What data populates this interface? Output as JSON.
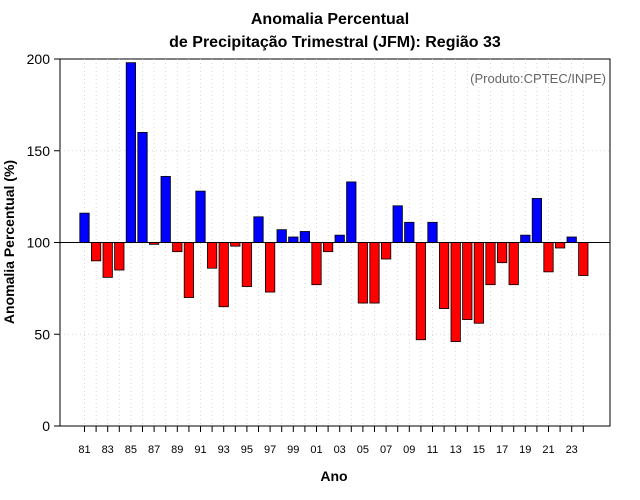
{
  "chart_data": {
    "type": "bar",
    "title_line1": "Anomalia Percentual",
    "title_line2": "de Precipitação Trimestral (JFM): Região 33",
    "xlabel": "Ano",
    "ylabel": "Anomalia Percentual (%)",
    "credit": "(Produto:CPTEC/INPE)",
    "baseline": 100,
    "ylim": [
      0,
      200
    ],
    "yticks": [
      0,
      50,
      100,
      150,
      200
    ],
    "grid": true,
    "colors": {
      "above": "#0000ff",
      "below": "#ff0000",
      "edge": "#000000"
    },
    "categories": [
      "81",
      "82",
      "83",
      "84",
      "85",
      "86",
      "87",
      "88",
      "89",
      "90",
      "91",
      "92",
      "93",
      "94",
      "95",
      "96",
      "97",
      "98",
      "99",
      "00",
      "01",
      "02",
      "03",
      "04",
      "05",
      "06",
      "07",
      "08",
      "09",
      "10",
      "11",
      "12",
      "13",
      "14",
      "15",
      "16",
      "17",
      "18",
      "19",
      "20",
      "21",
      "22",
      "23",
      "24"
    ],
    "xtick_labels": [
      "81",
      "83",
      "85",
      "87",
      "89",
      "91",
      "93",
      "95",
      "97",
      "99",
      "01",
      "03",
      "05",
      "07",
      "09",
      "11",
      "13",
      "15",
      "17",
      "19",
      "21",
      "23"
    ],
    "values": [
      116,
      90,
      81,
      85,
      198,
      160,
      99,
      136,
      95,
      70,
      128,
      86,
      65,
      98,
      76,
      114,
      73,
      107,
      103,
      106,
      77,
      95,
      104,
      133,
      67,
      67,
      91,
      120,
      111,
      47,
      111,
      64,
      46,
      58,
      56,
      77,
      89,
      77,
      104,
      124,
      84,
      97,
      103,
      82
    ]
  }
}
